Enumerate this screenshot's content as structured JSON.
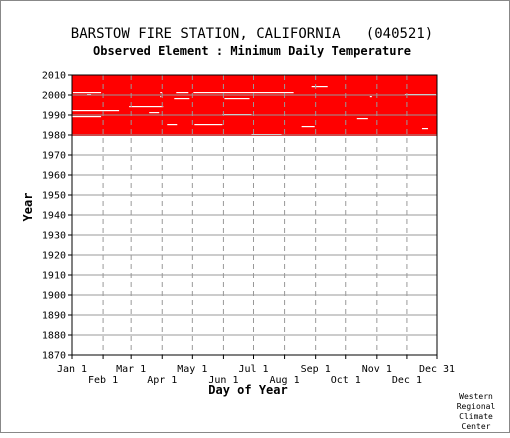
{
  "chart_data": {
    "type": "heatmap",
    "title": "BARSTOW FIRE STATION, CALIFORNIA   (040521)",
    "subtitle": "Observed Element : Minimum Daily Temperature",
    "xlabel": "Day of Year",
    "ylabel": "Year",
    "credit": [
      "Western",
      "Regional",
      "Climate",
      "Center"
    ],
    "x_range_days": [
      1,
      365
    ],
    "ylim": [
      1870,
      2010
    ],
    "y_ticks": [
      1870,
      1880,
      1890,
      1900,
      1910,
      1920,
      1930,
      1940,
      1950,
      1960,
      1970,
      1980,
      1990,
      2000,
      2010
    ],
    "x_ticks_top_row": [
      {
        "label": "Jan 1",
        "day": 1
      },
      {
        "label": "Mar 1",
        "day": 60
      },
      {
        "label": "May 1",
        "day": 121
      },
      {
        "label": "Jul 1",
        "day": 182
      },
      {
        "label": "Sep 1",
        "day": 244
      },
      {
        "label": "Nov 1",
        "day": 305
      },
      {
        "label": "Dec 31",
        "day": 365
      }
    ],
    "x_ticks_bottom_row": [
      {
        "label": "Feb 1",
        "day": 32
      },
      {
        "label": "Apr 1",
        "day": 91
      },
      {
        "label": "Jun 1",
        "day": 152
      },
      {
        "label": "Aug 1",
        "day": 213
      },
      {
        "label": "Oct 1",
        "day": 274
      },
      {
        "label": "Dec 1",
        "day": 335
      }
    ],
    "grid": true,
    "colors": {
      "data_present": "#ff0000",
      "missing": "#ffffff",
      "grid": "#999999"
    },
    "data_coverage": {
      "start_year": 1979.5,
      "end_year": 2010,
      "start_day": 1,
      "end_day": 365
    },
    "missing_segments": [
      {
        "year": 2001,
        "start_day": 2,
        "end_day": 30
      },
      {
        "year": 2000,
        "start_day": 16,
        "end_day": 20
      },
      {
        "year": 1992,
        "start_day": 1,
        "end_day": 48
      },
      {
        "year": 1989,
        "start_day": 1,
        "end_day": 30
      },
      {
        "year": 1994,
        "start_day": 58,
        "end_day": 92
      },
      {
        "year": 1991,
        "start_day": 78,
        "end_day": 88
      },
      {
        "year": 2001,
        "start_day": 89,
        "end_day": 91
      },
      {
        "year": 1999,
        "start_day": 89,
        "end_day": 90
      },
      {
        "year": 2001,
        "start_day": 105,
        "end_day": 117
      },
      {
        "year": 1998,
        "start_day": 103,
        "end_day": 118
      },
      {
        "year": 1985,
        "start_day": 96,
        "end_day": 106
      },
      {
        "year": 2001,
        "start_day": 122,
        "end_day": 222
      },
      {
        "year": 1985,
        "start_day": 123,
        "end_day": 151
      },
      {
        "year": 1998,
        "start_day": 153,
        "end_day": 178
      },
      {
        "year": 1990,
        "start_day": 151,
        "end_day": 180
      },
      {
        "year": 1980,
        "start_day": 180,
        "end_day": 210
      },
      {
        "year": 2004,
        "start_day": 240,
        "end_day": 256
      },
      {
        "year": 1984,
        "start_day": 230,
        "end_day": 243
      },
      {
        "year": 1988,
        "start_day": 285,
        "end_day": 296
      },
      {
        "year": 2000,
        "start_day": 333,
        "end_day": 364
      },
      {
        "year": 1999,
        "start_day": 298,
        "end_day": 300
      },
      {
        "year": 1983,
        "start_day": 350,
        "end_day": 356
      }
    ]
  }
}
